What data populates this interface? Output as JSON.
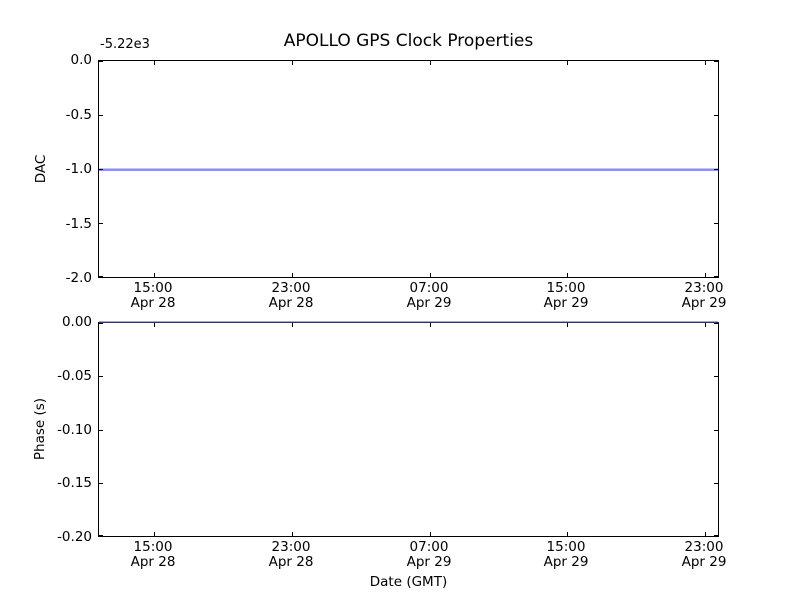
{
  "figure": {
    "background": "#ffffff",
    "line_color": "#8f92ec",
    "spine_color": "#000000"
  },
  "chart_data": [
    {
      "type": "line",
      "title": "APOLLO GPS Clock Properties",
      "ylabel": "DAC",
      "xlabel": "",
      "axis_offset_text": "-5.22e3",
      "ylim": [
        -2.0,
        0.0
      ],
      "yticks": [
        "0.0",
        "-0.5",
        "-1.0",
        "-1.5",
        "-2.0"
      ],
      "x_tick_labels": [
        [
          "15:00",
          "Apr 28"
        ],
        [
          "23:00",
          "Apr 28"
        ],
        [
          "07:00",
          "Apr 29"
        ],
        [
          "15:00",
          "Apr 29"
        ],
        [
          "23:00",
          "Apr 29"
        ]
      ],
      "grid": false,
      "legend_position": "none",
      "series": [
        {
          "name": "DAC",
          "shape": "constant horizontal line across full x-range",
          "value_displayed": -1.0,
          "value_with_offset": -5221.0,
          "color": "#8f92ec"
        }
      ]
    },
    {
      "type": "line",
      "title": "",
      "ylabel": "Phase (s)",
      "xlabel": "Date (GMT)",
      "ylim": [
        -0.2,
        0.0
      ],
      "yticks": [
        "0.00",
        "-0.05",
        "-0.10",
        "-0.15",
        "-0.20"
      ],
      "x_tick_labels": [
        [
          "15:00",
          "Apr 28"
        ],
        [
          "23:00",
          "Apr 28"
        ],
        [
          "07:00",
          "Apr 29"
        ],
        [
          "15:00",
          "Apr 29"
        ],
        [
          "23:00",
          "Apr 29"
        ]
      ],
      "grid": false,
      "legend_position": "none",
      "series": [
        {
          "name": "Phase",
          "shape": "constant horizontal line across full x-range at top axis limit",
          "value": 0.0,
          "color": "#8f92ec"
        }
      ]
    }
  ]
}
